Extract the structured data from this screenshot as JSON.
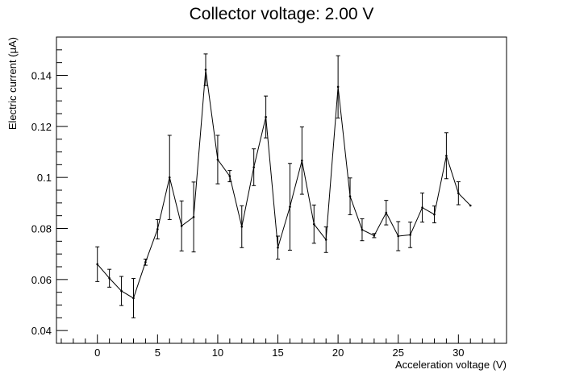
{
  "chart_data": {
    "type": "line",
    "title": "Collector voltage: 2.00 V",
    "xlabel": "Acceleration voltage (V)",
    "ylabel": "Electric current (μA)",
    "xlim": [
      -3.4,
      34.0
    ],
    "ylim": [
      0.035,
      0.155
    ],
    "x_ticks": [
      0,
      5,
      10,
      15,
      20,
      25,
      30
    ],
    "x_tick_labels": [
      "0",
      "5",
      "10",
      "15",
      "20",
      "25",
      "30"
    ],
    "y_ticks": [
      0.04,
      0.06,
      0.08,
      0.1,
      0.12,
      0.14
    ],
    "y_tick_labels": [
      "0.04",
      "0.06",
      "0.08",
      "0.1",
      "0.12",
      "0.14"
    ],
    "grid": false,
    "legend": "none",
    "series": [
      {
        "x": [
          0,
          1,
          2,
          3,
          4,
          5,
          6,
          7,
          8,
          9,
          10,
          11,
          12,
          13,
          14,
          15,
          16,
          17,
          18,
          19,
          20,
          21,
          22,
          23,
          24,
          25,
          26,
          27,
          28,
          29,
          30,
          31
        ],
        "y": [
          0.066,
          0.0605,
          0.0555,
          0.0527,
          0.0668,
          0.0797,
          0.1,
          0.081,
          0.0845,
          0.1422,
          0.107,
          0.1005,
          0.0807,
          0.104,
          0.1237,
          0.0725,
          0.0885,
          0.1066,
          0.0817,
          0.0756,
          0.1355,
          0.0926,
          0.0795,
          0.0772,
          0.0862,
          0.077,
          0.0775,
          0.0882,
          0.0855,
          0.1085,
          0.0938,
          0.089
        ],
        "y_error": [
          0.0068,
          0.0035,
          0.0057,
          0.0077,
          0.0012,
          0.0038,
          0.0165,
          0.0098,
          0.0137,
          0.0062,
          0.0095,
          0.0022,
          0.0082,
          0.0072,
          0.0082,
          0.0045,
          0.017,
          0.0132,
          0.0075,
          0.005,
          0.0122,
          0.0072,
          0.0043,
          0.0008,
          0.0048,
          0.0057,
          0.005,
          0.0057,
          0.0033,
          0.009,
          0.0045,
          0
        ]
      }
    ]
  }
}
